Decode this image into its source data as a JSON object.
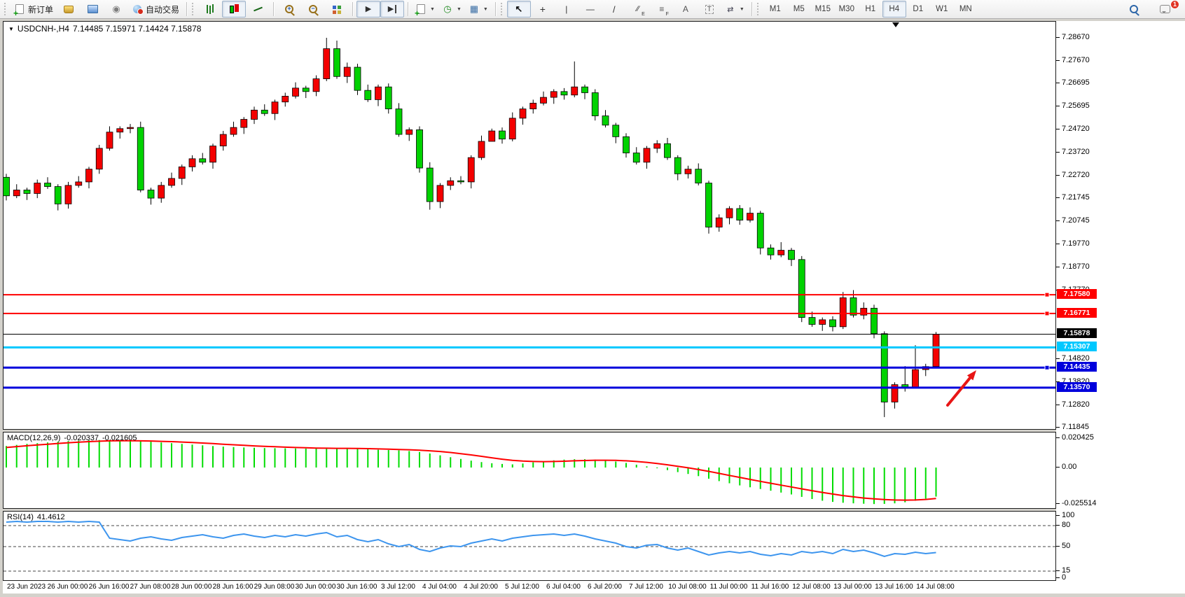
{
  "toolbar": {
    "new_order_label": "新订单",
    "auto_trading_label": "自动交易",
    "notification_count": "1",
    "groups": [
      {
        "name": "orders-group",
        "grip": true,
        "items": [
          {
            "name": "new-order-button",
            "icon": "new-order",
            "label": "新订单"
          },
          {
            "name": "market-button",
            "icon": "gold"
          },
          {
            "name": "vps-button",
            "icon": "vps"
          },
          {
            "name": "signals-button",
            "icon": "signal"
          },
          {
            "name": "algo-trading-button",
            "icon": "globe",
            "label": "自动交易"
          }
        ]
      },
      {
        "name": "chart-type-group",
        "grip": true,
        "items": [
          {
            "name": "bar-chart-button",
            "icon": "bars"
          },
          {
            "name": "candlestick-chart-button",
            "icon": "candles",
            "active": true
          },
          {
            "name": "line-chart-button",
            "icon": "linechart"
          }
        ]
      },
      {
        "name": "zoom-group",
        "items": [
          {
            "name": "zoom-in-button",
            "icon": "zoom-in"
          },
          {
            "name": "zoom-out-button",
            "icon": "zoom-out"
          },
          {
            "name": "tile-windows-button",
            "icon": "tiles"
          }
        ]
      },
      {
        "name": "scroll-group",
        "items": [
          {
            "name": "autoscroll-button",
            "icon": "autoscroll",
            "active": true
          },
          {
            "name": "chart-shift-button",
            "icon": "shift",
            "active": true
          }
        ]
      },
      {
        "name": "insert-group",
        "items": [
          {
            "name": "indicators-button",
            "icon": "indicators",
            "dropdown": true
          },
          {
            "name": "periods-button",
            "icon": "clock",
            "dropdown": true
          },
          {
            "name": "templates-button",
            "icon": "template",
            "dropdown": true
          }
        ]
      },
      {
        "name": "drawing-tools-group",
        "grip": true,
        "items": [
          {
            "name": "cursor-button",
            "icon": "cursor",
            "active": true
          },
          {
            "name": "crosshair-button",
            "icon": "crosshair"
          },
          {
            "name": "vertical-line-button",
            "icon": "vline"
          },
          {
            "name": "horizontal-line-button",
            "icon": "hline"
          },
          {
            "name": "trendline-button",
            "icon": "trend"
          },
          {
            "name": "channel-button",
            "icon": "channel"
          },
          {
            "name": "fibonacci-button",
            "icon": "fibo"
          },
          {
            "name": "text-button",
            "icon": "text"
          },
          {
            "name": "text-label-button",
            "icon": "labelbox"
          },
          {
            "name": "arrows-button",
            "icon": "arrows",
            "dropdown": true
          }
        ]
      },
      {
        "name": "timeframe-group",
        "grip": true,
        "items": [
          {
            "name": "timeframe-m1-button",
            "label": "M1",
            "tf": true
          },
          {
            "name": "timeframe-m5-button",
            "label": "M5",
            "tf": true
          },
          {
            "name": "timeframe-m15-button",
            "label": "M15",
            "tf": true
          },
          {
            "name": "timeframe-m30-button",
            "label": "M30",
            "tf": true
          },
          {
            "name": "timeframe-h1-button",
            "label": "H1",
            "tf": true
          },
          {
            "name": "timeframe-h4-button",
            "label": "H4",
            "tf": true,
            "active": true
          },
          {
            "name": "timeframe-d1-button",
            "label": "D1",
            "tf": true
          },
          {
            "name": "timeframe-w1-button",
            "label": "W1",
            "tf": true
          },
          {
            "name": "timeframe-mn-button",
            "label": "MN",
            "tf": true
          }
        ]
      }
    ]
  },
  "chart": {
    "title_text": "USDCNH-,H4",
    "ohlc_text": "7.14485 7.15971 7.14424 7.15878"
  },
  "chart_data": {
    "type": "candlestick",
    "symbol": "USDCNH-",
    "period": "H4",
    "current_ohlc": {
      "open": "7.14485",
      "high": "7.15971",
      "low": "7.14424",
      "close": "7.15878"
    },
    "colors": {
      "bull": "#f40000",
      "bear": "#00d200",
      "wick": "#000000",
      "macd_hist": "#00dd00",
      "macd_signal": "#ff0000",
      "rsi_line": "#3d95ee"
    },
    "y_axis_ticks": [
      "7.28670",
      "7.27670",
      "7.26695",
      "7.25695",
      "7.24720",
      "7.23720",
      "7.22720",
      "7.21745",
      "7.20745",
      "7.19770",
      "7.18770",
      "7.17770",
      "7.14820",
      "7.13820",
      "7.12820",
      "7.11845"
    ],
    "levels": [
      {
        "name": "resistance-line-1",
        "price": 7.1758,
        "label": "7.17580",
        "color": "#ff0000",
        "width": 2,
        "handle": true
      },
      {
        "name": "resistance-line-2",
        "price": 7.16771,
        "label": "7.16771",
        "color": "#ff0000",
        "width": 2,
        "handle": true
      },
      {
        "name": "current-price-line",
        "price": 7.15878,
        "label": "7.15878",
        "color": "#000000",
        "width": 1,
        "handle": false
      },
      {
        "name": "cyan-support-line",
        "price": 7.15307,
        "label": "7.15307",
        "color": "#00c8ff",
        "width": 3,
        "handle": false
      },
      {
        "name": "blue-support-line-1",
        "price": 7.14435,
        "label": "7.14435",
        "color": "#0000dc",
        "width": 3,
        "handle": true
      },
      {
        "name": "blue-support-line-2",
        "price": 7.1357,
        "label": "7.13570",
        "color": "#0000dc",
        "width": 3,
        "handle": false
      }
    ],
    "x_labels": [
      "23 Jun 2023",
      "26 Jun 00:00",
      "26 Jun 16:00",
      "27 Jun 08:00",
      "28 Jun 00:00",
      "28 Jun 16:00",
      "29 Jun 08:00",
      "30 Jun 00:00",
      "30 Jun 16:00",
      "3 Jul 12:00",
      "4 Jul 04:00",
      "4 Jul 20:00",
      "5 Jul 12:00",
      "6 Jul 04:00",
      "6 Jul 20:00",
      "7 Jul 12:00",
      "10 Jul 08:00",
      "11 Jul 00:00",
      "11 Jul 16:00",
      "12 Jul 08:00",
      "13 Jul 00:00",
      "13 Jul 16:00",
      "14 Jul 08:00"
    ],
    "candles": [
      [
        7.2265,
        7.228,
        7.2165,
        7.2185
      ],
      [
        7.2185,
        7.2235,
        7.2175,
        7.221
      ],
      [
        7.221,
        7.222,
        7.2167,
        7.2195
      ],
      [
        7.2195,
        7.2255,
        7.2175,
        7.224
      ],
      [
        7.224,
        7.2265,
        7.2215,
        7.2225
      ],
      [
        7.2225,
        7.2235,
        7.2122,
        7.215
      ],
      [
        7.215,
        7.2245,
        7.213,
        7.223
      ],
      [
        7.223,
        7.227,
        7.222,
        7.2245
      ],
      [
        7.2245,
        7.231,
        7.2217,
        7.23
      ],
      [
        7.23,
        7.2405,
        7.228,
        7.239
      ],
      [
        7.239,
        7.2485,
        7.238,
        7.246
      ],
      [
        7.246,
        7.2485,
        7.2432,
        7.2475
      ],
      [
        7.2475,
        7.2495,
        7.2455,
        7.248
      ],
      [
        7.248,
        7.2505,
        7.22,
        7.221
      ],
      [
        7.221,
        7.222,
        7.2147,
        7.2175
      ],
      [
        7.2175,
        7.2245,
        7.2155,
        7.223
      ],
      [
        7.223,
        7.2285,
        7.222,
        7.226
      ],
      [
        7.226,
        7.232,
        7.2232,
        7.231
      ],
      [
        7.231,
        7.236,
        7.229,
        7.2345
      ],
      [
        7.2345,
        7.237,
        7.232,
        7.233
      ],
      [
        7.233,
        7.241,
        7.2302,
        7.24
      ],
      [
        7.24,
        7.2465,
        7.238,
        7.245
      ],
      [
        7.245,
        7.2505,
        7.244,
        7.248
      ],
      [
        7.248,
        7.2525,
        7.2452,
        7.2515
      ],
      [
        7.2515,
        7.257,
        7.2495,
        7.2555
      ],
      [
        7.2555,
        7.258,
        7.253,
        7.254
      ],
      [
        7.254,
        7.26,
        7.2512,
        7.259
      ],
      [
        7.259,
        7.263,
        7.257,
        7.2615
      ],
      [
        7.2615,
        7.2675,
        7.2605,
        7.265
      ],
      [
        7.265,
        7.266,
        7.2607,
        7.2635
      ],
      [
        7.2635,
        7.2705,
        7.2615,
        7.269
      ],
      [
        7.269,
        7.2867,
        7.268,
        7.282
      ],
      [
        7.282,
        7.2855,
        7.269,
        7.27
      ],
      [
        7.27,
        7.276,
        7.2672,
        7.274
      ],
      [
        7.274,
        7.2755,
        7.262,
        7.264
      ],
      [
        7.264,
        7.2665,
        7.259,
        7.26
      ],
      [
        7.26,
        7.2665,
        7.2572,
        7.2655
      ],
      [
        7.2655,
        7.267,
        7.254,
        7.256
      ],
      [
        7.256,
        7.2585,
        7.244,
        7.245
      ],
      [
        7.245,
        7.248,
        7.2422,
        7.247
      ],
      [
        7.247,
        7.2485,
        7.2285,
        7.2305
      ],
      [
        7.2305,
        7.233,
        7.2125,
        7.216
      ],
      [
        7.216,
        7.224,
        7.2132,
        7.223
      ],
      [
        7.223,
        7.2265,
        7.221,
        7.225
      ],
      [
        7.225,
        7.227,
        7.2235,
        7.2245
      ],
      [
        7.2245,
        7.236,
        7.2217,
        7.235
      ],
      [
        7.235,
        7.2445,
        7.234,
        7.242
      ],
      [
        7.242,
        7.2475,
        7.2437,
        7.2465
      ],
      [
        7.2465,
        7.248,
        7.241,
        7.243
      ],
      [
        7.243,
        7.2545,
        7.242,
        7.252
      ],
      [
        7.252,
        7.257,
        7.2492,
        7.256
      ],
      [
        7.256,
        7.26,
        7.254,
        7.2585
      ],
      [
        7.2585,
        7.2635,
        7.2575,
        7.261
      ],
      [
        7.261,
        7.2645,
        7.2582,
        7.2635
      ],
      [
        7.2635,
        7.265,
        7.26,
        7.262
      ],
      [
        7.262,
        7.2765,
        7.261,
        7.2655
      ],
      [
        7.2655,
        7.2665,
        7.2602,
        7.263
      ],
      [
        7.263,
        7.2645,
        7.251,
        7.253
      ],
      [
        7.253,
        7.2555,
        7.248,
        7.249
      ],
      [
        7.249,
        7.25,
        7.2412,
        7.244
      ],
      [
        7.244,
        7.2455,
        7.235,
        7.237
      ],
      [
        7.237,
        7.2395,
        7.232,
        7.233
      ],
      [
        7.233,
        7.24,
        7.2302,
        7.239
      ],
      [
        7.239,
        7.2425,
        7.237,
        7.241
      ],
      [
        7.241,
        7.2435,
        7.234,
        7.235
      ],
      [
        7.235,
        7.236,
        7.2252,
        7.228
      ],
      [
        7.228,
        7.2315,
        7.226,
        7.23
      ],
      [
        7.23,
        7.2325,
        7.223,
        7.224
      ],
      [
        7.224,
        7.225,
        7.2022,
        7.205
      ],
      [
        7.205,
        7.2105,
        7.203,
        7.209
      ],
      [
        7.209,
        7.214,
        7.2062,
        7.213
      ],
      [
        7.213,
        7.2145,
        7.206,
        7.208
      ],
      [
        7.208,
        7.2135,
        7.207,
        7.211
      ],
      [
        7.211,
        7.212,
        7.1932,
        7.196
      ],
      [
        7.196,
        7.1975,
        7.191,
        7.193
      ],
      [
        7.193,
        7.1985,
        7.192,
        7.195
      ],
      [
        7.195,
        7.196,
        7.1882,
        7.191
      ],
      [
        7.191,
        7.1925,
        7.164,
        7.166
      ],
      [
        7.166,
        7.1685,
        7.162,
        7.163
      ],
      [
        7.163,
        7.166,
        7.1602,
        7.165
      ],
      [
        7.165,
        7.1665,
        7.16,
        7.162
      ],
      [
        7.162,
        7.177,
        7.161,
        7.1745
      ],
      [
        7.1745,
        7.1778,
        7.166,
        7.167
      ],
      [
        7.167,
        7.1725,
        7.1652,
        7.17
      ],
      [
        7.17,
        7.1715,
        7.157,
        7.159
      ],
      [
        7.159,
        7.16,
        7.123,
        7.1295
      ],
      [
        7.1295,
        7.138,
        7.1267,
        7.137
      ],
      [
        7.137,
        7.145,
        7.134,
        7.136
      ],
      [
        7.136,
        7.154,
        7.1355,
        7.1435
      ],
      [
        7.1435,
        7.146,
        7.1407,
        7.1448
      ],
      [
        7.14485,
        7.15971,
        7.14424,
        7.15878
      ]
    ],
    "indicators": {
      "macd": {
        "label": "MACD(12,26,9)",
        "value_main": "-0.020337",
        "value_signal": "-0.021605",
        "axis": [
          "0.020425",
          "0.00",
          "-0.025514"
        ],
        "histogram": [
          0.015,
          0.0158,
          0.0165,
          0.017,
          0.0175,
          0.018,
          0.0185,
          0.0188,
          0.019,
          0.0192,
          0.019,
          0.0188,
          0.0185,
          0.0183,
          0.018,
          0.0175,
          0.017,
          0.0165,
          0.016,
          0.0155,
          0.015,
          0.0146,
          0.0143,
          0.014,
          0.0138,
          0.0136,
          0.0135,
          0.0134,
          0.0133,
          0.0132,
          0.0132,
          0.0133,
          0.0134,
          0.0134,
          0.0132,
          0.0128,
          0.0124,
          0.0122,
          0.012,
          0.0115,
          0.0108,
          0.0098,
          0.0085,
          0.0072,
          0.006,
          0.0048,
          0.0038,
          0.003,
          0.0025,
          0.0022,
          0.0028,
          0.0036,
          0.0044,
          0.005,
          0.0055,
          0.0058,
          0.0058,
          0.0055,
          0.005,
          0.0042,
          0.0032,
          0.002,
          0.0008,
          -0.0005,
          -0.0018,
          -0.0032,
          -0.0045,
          -0.006,
          -0.0078,
          -0.0095,
          -0.011,
          -0.0125,
          -0.0138,
          -0.015,
          -0.0162,
          -0.0175,
          -0.0188,
          -0.0205,
          -0.022,
          -0.0232,
          -0.024,
          -0.0246,
          -0.025,
          -0.0253,
          -0.0255,
          -0.0254,
          -0.025,
          -0.0243,
          -0.0232,
          -0.0218,
          -0.0203
        ],
        "signal": [
          0.014,
          0.0146,
          0.0152,
          0.0158,
          0.0163,
          0.0168,
          0.0173,
          0.0177,
          0.0181,
          0.0184,
          0.0186,
          0.0187,
          0.0187,
          0.0186,
          0.0185,
          0.0183,
          0.0181,
          0.0178,
          0.0175,
          0.0171,
          0.0167,
          0.0163,
          0.0159,
          0.0155,
          0.0151,
          0.0148,
          0.0145,
          0.0142,
          0.014,
          0.0138,
          0.0136,
          0.0135,
          0.0134,
          0.0134,
          0.0133,
          0.0132,
          0.013,
          0.0128,
          0.0126,
          0.0124,
          0.0121,
          0.0117,
          0.0112,
          0.0105,
          0.0097,
          0.0088,
          0.0078,
          0.0068,
          0.0058,
          0.005,
          0.0045,
          0.0042,
          0.0041,
          0.0042,
          0.0044,
          0.0047,
          0.0049,
          0.0051,
          0.0051,
          0.005,
          0.0047,
          0.0042,
          0.0036,
          0.0028,
          0.0019,
          0.0009,
          -0.0002,
          -0.0014,
          -0.0027,
          -0.0041,
          -0.0055,
          -0.0069,
          -0.0083,
          -0.0097,
          -0.011,
          -0.0123,
          -0.0136,
          -0.0149,
          -0.0162,
          -0.0174,
          -0.0185,
          -0.0196,
          -0.0205,
          -0.0213,
          -0.0219,
          -0.0224,
          -0.0227,
          -0.0228,
          -0.0227,
          -0.0223,
          -0.0216
        ]
      },
      "rsi": {
        "label": "RSI(14)",
        "value": "41.4612",
        "axis": [
          "100",
          "80",
          "50",
          "15",
          "0"
        ],
        "dashed_levels": [
          80,
          50,
          15
        ],
        "values": [
          85,
          86,
          85,
          86,
          86,
          85,
          86,
          85,
          86,
          85,
          62,
          60,
          58,
          62,
          64,
          61,
          59,
          63,
          65,
          67,
          64,
          62,
          66,
          68,
          65,
          63,
          66,
          64,
          67,
          65,
          68,
          70,
          64,
          66,
          60,
          57,
          60,
          54,
          50,
          53,
          46,
          43,
          48,
          51,
          50,
          55,
          58,
          61,
          58,
          62,
          64,
          66,
          67,
          68,
          66,
          68,
          65,
          61,
          58,
          55,
          50,
          48,
          52,
          53,
          48,
          45,
          48,
          43,
          38,
          41,
          43,
          41,
          43,
          39,
          37,
          40,
          38,
          43,
          41,
          43,
          40,
          46,
          43,
          45,
          41,
          36,
          40,
          39,
          42,
          40,
          41.46
        ]
      }
    },
    "annotations": {
      "arrow": {
        "from": [
          1352,
          578
        ],
        "to": [
          1393,
          528
        ],
        "color": "#e81515"
      }
    }
  }
}
